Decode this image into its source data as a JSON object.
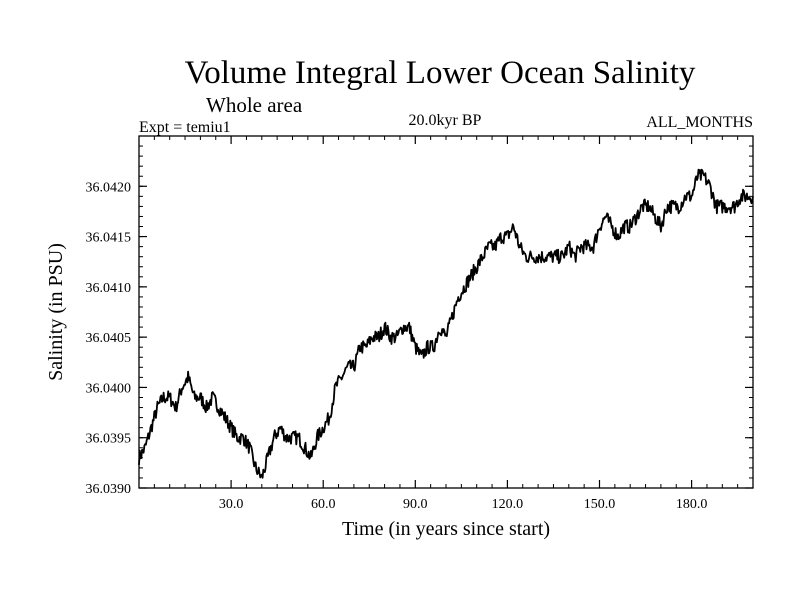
{
  "chart_data": {
    "type": "line",
    "title": "Volume Integral Lower Ocean Salinity",
    "subtitle": "Whole area",
    "expt_label": "Expt = temiu1",
    "period_label": "20.0kyr BP",
    "months_label": "ALL_MONTHS",
    "xlabel": "Time (in years since start)",
    "ylabel": "Salinity (in PSU)",
    "xlim": [
      0,
      200
    ],
    "ylim": [
      36.039,
      36.0425
    ],
    "x_ticks": [
      30,
      60,
      90,
      120,
      150,
      180
    ],
    "x_tick_labels": [
      "30.0",
      "60.0",
      "90.0",
      "120.0",
      "150.0",
      "180.0"
    ],
    "y_ticks": [
      36.039,
      36.0395,
      36.04,
      36.0405,
      36.041,
      36.0415,
      36.042
    ],
    "y_tick_labels": [
      "36.0390",
      "36.0395",
      "36.0400",
      "36.0405",
      "36.0410",
      "36.0415",
      "36.0420"
    ],
    "grid": false,
    "series": [
      {
        "name": "Salinity",
        "color": "#000000",
        "x": [
          0,
          2,
          4,
          6,
          8,
          10,
          12,
          14,
          16,
          18,
          20,
          22,
          24,
          26,
          28,
          30,
          32,
          34,
          36,
          38,
          40,
          42,
          44,
          46,
          48,
          50,
          52,
          54,
          56,
          58,
          60,
          62,
          64,
          66,
          68,
          70,
          72,
          74,
          76,
          78,
          80,
          82,
          84,
          86,
          88,
          90,
          92,
          94,
          96,
          98,
          100,
          102,
          104,
          106,
          108,
          110,
          112,
          114,
          116,
          118,
          120,
          122,
          124,
          126,
          128,
          130,
          132,
          134,
          136,
          138,
          140,
          142,
          144,
          146,
          148,
          150,
          152,
          154,
          156,
          158,
          160,
          162,
          164,
          166,
          168,
          170,
          172,
          174,
          176,
          178,
          180,
          182,
          184,
          186,
          188,
          190,
          192,
          194,
          196,
          198,
          200
        ],
        "values": [
          36.0393,
          36.0394,
          36.0396,
          36.0398,
          36.0399,
          36.0399,
          36.0398,
          36.04,
          36.0401,
          36.0399,
          36.0399,
          36.0398,
          36.0399,
          36.0398,
          36.0397,
          36.0396,
          36.0395,
          36.0395,
          36.0394,
          36.0392,
          36.0391,
          36.0393,
          36.0395,
          36.0396,
          36.0395,
          36.0395,
          36.0395,
          36.0394,
          36.0393,
          36.0395,
          36.0396,
          36.0397,
          36.04,
          36.0401,
          36.0402,
          36.0402,
          36.0404,
          36.0404,
          36.0405,
          36.0405,
          36.0406,
          36.0405,
          36.0405,
          36.0406,
          36.0406,
          36.0404,
          36.0403,
          36.0404,
          36.0404,
          36.0406,
          36.0405,
          36.0407,
          36.0409,
          36.041,
          36.0411,
          36.0412,
          36.0413,
          36.0414,
          36.0414,
          36.0415,
          36.0415,
          36.0416,
          36.0414,
          36.0413,
          36.0413,
          36.0413,
          36.0413,
          36.0413,
          36.0413,
          36.0413,
          36.0414,
          36.0413,
          36.0414,
          36.0414,
          36.0414,
          36.0416,
          36.0417,
          36.0416,
          36.0415,
          36.0416,
          36.0416,
          36.0417,
          36.0418,
          36.0418,
          36.0417,
          36.0416,
          36.0418,
          36.0418,
          36.0418,
          36.0419,
          36.0419,
          36.0421,
          36.0421,
          36.042,
          36.0418,
          36.0418,
          36.0418,
          36.0418,
          36.0419,
          36.0419,
          36.0419
        ]
      }
    ]
  }
}
